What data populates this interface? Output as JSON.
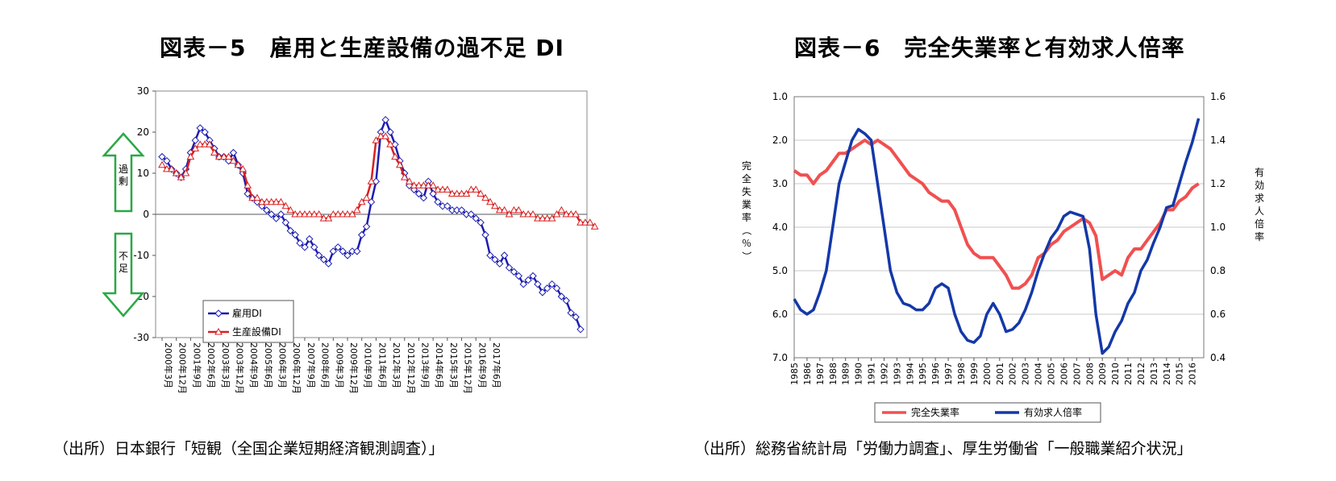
{
  "chart_data": [
    {
      "type": "line",
      "title": "図表－5　雇用と生産設備の過不足 DI",
      "ylim": [
        -30,
        30
      ],
      "yticks": [
        30,
        20,
        10,
        0,
        -10,
        -20,
        -30
      ],
      "x_tick_labels": [
        "2000年3月",
        "2000年12月",
        "2001年9月",
        "2002年6月",
        "2003年3月",
        "2003年12月",
        "2004年9月",
        "2005年6月",
        "2006年3月",
        "2006年12月",
        "2007年9月",
        "2008年6月",
        "2009年3月",
        "2009年12月",
        "2010年9月",
        "2011年6月",
        "2012年3月",
        "2012年12月",
        "2013年9月",
        "2014年6月",
        "2015年3月",
        "2015年12月",
        "2016年9月",
        "2017年6月"
      ],
      "x_label_interval": 3,
      "annotations": {
        "upper": "過剰",
        "lower": "不足"
      },
      "legend": "bottom-left",
      "grid": false,
      "series": [
        {
          "name": "雇用DI",
          "color": "#1c1cb0",
          "values": [
            14,
            13,
            11,
            10,
            9,
            11,
            15,
            18,
            21,
            20,
            18,
            16,
            14,
            14,
            13,
            15,
            12,
            10,
            5,
            4,
            3,
            2,
            1,
            0,
            -1,
            0,
            -2,
            -4,
            -5,
            -7,
            -8,
            -6,
            -8,
            -10,
            -11,
            -12,
            -9,
            -8,
            -9,
            -10,
            -9,
            -9,
            -5,
            -3,
            3,
            8,
            20,
            23,
            20,
            17,
            13,
            10,
            7,
            6,
            5,
            4,
            8,
            5,
            3,
            2,
            2,
            1,
            1,
            1,
            0,
            0,
            -1,
            -2,
            -5,
            -10,
            -11,
            -12,
            -10,
            -13,
            -14,
            -15,
            -17,
            -16,
            -15,
            -17,
            -19,
            -18,
            -17,
            -18,
            -20,
            -21,
            -24,
            -25,
            -28
          ]
        },
        {
          "name": "生産設備DI",
          "color": "#d92020",
          "values": [
            12,
            11,
            11,
            10,
            9,
            10,
            14,
            16,
            17,
            17,
            17,
            15,
            14,
            14,
            14,
            13,
            12,
            11,
            7,
            4,
            4,
            3,
            3,
            3,
            3,
            3,
            2,
            1,
            0,
            0,
            0,
            0,
            0,
            0,
            -1,
            -1,
            0,
            0,
            0,
            0,
            0,
            1,
            3,
            4,
            8,
            18,
            19,
            19,
            17,
            14,
            12,
            9,
            8,
            7,
            7,
            7,
            7,
            7,
            6,
            6,
            6,
            5,
            5,
            5,
            5,
            6,
            6,
            5,
            4,
            3,
            2,
            1,
            1,
            0,
            1,
            1,
            0,
            0,
            0,
            -1,
            -1,
            -1,
            -1,
            0,
            1,
            0,
            0,
            0,
            -2,
            -2,
            -2,
            -3
          ]
        }
      ]
    },
    {
      "type": "line",
      "title": "図表－6　完全失業率と有効求人倍率",
      "left_axis": {
        "label": "完全失業率（％）",
        "ylim": [
          1.0,
          7.0
        ],
        "inverted": true,
        "ticks": [
          "1.0",
          "2.0",
          "3.0",
          "4.0",
          "5.0",
          "6.0",
          "7.0"
        ]
      },
      "right_axis": {
        "label": "有効求人倍率",
        "ylim": [
          0.4,
          1.6
        ],
        "ticks": [
          "1.6",
          "1.4",
          "1.2",
          "1.0",
          "0.8",
          "0.6",
          "0.4"
        ]
      },
      "x_tick_labels": [
        "1985",
        "1986",
        "1987",
        "1988",
        "1989",
        "1990",
        "1991",
        "1992",
        "1993",
        "1994",
        "1995",
        "1996",
        "1997",
        "1998",
        "1999",
        "2000",
        "2001",
        "2002",
        "2003",
        "2004",
        "2005",
        "2006",
        "2007",
        "2008",
        "2009",
        "2010",
        "2011",
        "2012",
        "2013",
        "2014",
        "2015",
        "2016"
      ],
      "grid": true,
      "legend": "bottom",
      "series": [
        {
          "name": "完全失業率",
          "axis": "left",
          "color": "#f05050",
          "x": [
            1985.0,
            1985.5,
            1986.0,
            1986.5,
            1987.0,
            1987.5,
            1988.0,
            1988.5,
            1989.0,
            1989.5,
            1990.0,
            1990.5,
            1991.0,
            1991.5,
            1992.0,
            1992.5,
            1993.0,
            1993.5,
            1994.0,
            1994.5,
            1995.0,
            1995.5,
            1996.0,
            1996.5,
            1997.0,
            1997.5,
            1998.0,
            1998.5,
            1999.0,
            1999.5,
            2000.0,
            2000.5,
            2001.0,
            2001.5,
            2002.0,
            2002.5,
            2003.0,
            2003.5,
            2004.0,
            2004.5,
            2005.0,
            2005.5,
            2006.0,
            2006.5,
            2007.0,
            2007.5,
            2008.0,
            2008.5,
            2009.0,
            2009.5,
            2010.0,
            2010.5,
            2011.0,
            2011.5,
            2012.0,
            2012.5,
            2013.0,
            2013.5,
            2014.0,
            2014.5,
            2015.0,
            2015.5,
            2016.0,
            2016.5
          ],
          "values": [
            2.7,
            2.8,
            2.8,
            3.0,
            2.8,
            2.7,
            2.5,
            2.3,
            2.3,
            2.2,
            2.1,
            2.0,
            2.1,
            2.0,
            2.1,
            2.2,
            2.4,
            2.6,
            2.8,
            2.9,
            3.0,
            3.2,
            3.3,
            3.4,
            3.4,
            3.6,
            4.0,
            4.4,
            4.6,
            4.7,
            4.7,
            4.7,
            4.9,
            5.1,
            5.4,
            5.4,
            5.3,
            5.1,
            4.7,
            4.6,
            4.4,
            4.3,
            4.1,
            4.0,
            3.9,
            3.8,
            3.9,
            4.2,
            5.2,
            5.1,
            5.0,
            5.1,
            4.7,
            4.5,
            4.5,
            4.3,
            4.1,
            3.9,
            3.6,
            3.6,
            3.4,
            3.3,
            3.1,
            3.0
          ]
        },
        {
          "name": "有効求人倍率",
          "axis": "right",
          "color": "#1438a8",
          "x": [
            1985.0,
            1985.5,
            1986.0,
            1986.5,
            1987.0,
            1987.5,
            1988.0,
            1988.5,
            1989.0,
            1989.5,
            1990.0,
            1990.5,
            1991.0,
            1991.5,
            1992.0,
            1992.5,
            1993.0,
            1993.5,
            1994.0,
            1994.5,
            1995.0,
            1995.5,
            1996.0,
            1996.5,
            1997.0,
            1997.5,
            1998.0,
            1998.5,
            1999.0,
            1999.5,
            2000.0,
            2000.5,
            2001.0,
            2001.5,
            2002.0,
            2002.5,
            2003.0,
            2003.5,
            2004.0,
            2004.5,
            2005.0,
            2005.5,
            2006.0,
            2006.5,
            2007.0,
            2007.5,
            2008.0,
            2008.5,
            2009.0,
            2009.5,
            2010.0,
            2010.5,
            2011.0,
            2011.5,
            2012.0,
            2012.5,
            2013.0,
            2013.5,
            2014.0,
            2014.5,
            2015.0,
            2015.5,
            2016.0,
            2016.5
          ],
          "values": [
            0.67,
            0.62,
            0.6,
            0.62,
            0.7,
            0.8,
            1.0,
            1.2,
            1.3,
            1.4,
            1.45,
            1.43,
            1.4,
            1.2,
            1.0,
            0.8,
            0.7,
            0.65,
            0.64,
            0.62,
            0.62,
            0.65,
            0.72,
            0.74,
            0.72,
            0.6,
            0.52,
            0.48,
            0.47,
            0.5,
            0.6,
            0.65,
            0.6,
            0.52,
            0.53,
            0.56,
            0.62,
            0.7,
            0.8,
            0.88,
            0.95,
            0.99,
            1.05,
            1.07,
            1.06,
            1.05,
            0.9,
            0.6,
            0.42,
            0.45,
            0.52,
            0.57,
            0.65,
            0.7,
            0.8,
            0.85,
            0.93,
            1.0,
            1.09,
            1.1,
            1.2,
            1.3,
            1.39,
            1.5
          ]
        }
      ]
    }
  ],
  "sources": [
    "（出所）日本銀行「短観（全国企業短期経済観測調査）」",
    "（出所）総務省統計局「労働力調査」、厚生労働省「一般職業紹介状況」"
  ]
}
